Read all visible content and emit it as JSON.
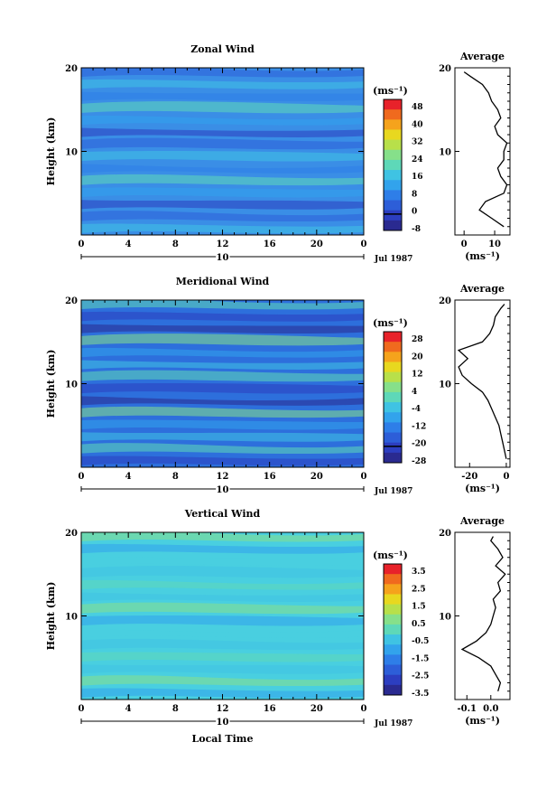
{
  "chart_data": [
    {
      "type": "heatmap",
      "title": "Zonal Wind",
      "ylabel": "Height (km)",
      "xlabel": "",
      "unit": "(ms⁻¹)",
      "date_label": "Jul 1987",
      "day_label": "10",
      "x_ticks": [
        "0",
        "4",
        "8",
        "12",
        "16",
        "20",
        "0"
      ],
      "y_ticks": [
        "20",
        "10"
      ],
      "ylim": [
        0,
        20
      ],
      "xlim": [
        0,
        24
      ],
      "colorbar_ticks": [
        "48",
        "40",
        "32",
        "24",
        "16",
        "8",
        "0",
        "-8"
      ],
      "colorbar_colors": [
        "#e8222a",
        "#f06a1e",
        "#f5a31c",
        "#e8d81f",
        "#b8e04a",
        "#86e08a",
        "#5ed8b8",
        "#3fc3e3",
        "#32a3ec",
        "#2e7ee8",
        "#2d5ed8",
        "#2c3ec0",
        "#2a2a90"
      ],
      "zero_index": 6,
      "fill_color": "#3a8ee6",
      "profile": {
        "title": "Average",
        "xlabel": "(ms⁻¹)",
        "x_ticks": [
          "0",
          "10"
        ],
        "xlim": [
          -3,
          15
        ],
        "y_ticks": [
          "20",
          "10"
        ],
        "z": [
          1,
          2,
          3,
          4,
          5,
          6,
          7,
          8,
          9,
          10,
          11,
          12,
          13,
          14,
          15,
          16,
          17,
          18,
          19,
          19.5
        ],
        "u": [
          13,
          9,
          5,
          7,
          13,
          14,
          12,
          11,
          13,
          13,
          14,
          11,
          10,
          12,
          11,
          9,
          8,
          6,
          2,
          0
        ]
      }
    },
    {
      "type": "heatmap",
      "title": "Meridional Wind",
      "ylabel": "Height (km)",
      "xlabel": "",
      "unit": "(ms⁻¹)",
      "date_label": "Jul 1987",
      "day_label": "10",
      "x_ticks": [
        "0",
        "4",
        "8",
        "12",
        "16",
        "20",
        "0"
      ],
      "y_ticks": [
        "20",
        "10"
      ],
      "ylim": [
        0,
        20
      ],
      "xlim": [
        0,
        24
      ],
      "colorbar_ticks": [
        "28",
        "20",
        "12",
        "4",
        "-4",
        "-12",
        "-20",
        "-28"
      ],
      "colorbar_colors": [
        "#e8222a",
        "#f06a1e",
        "#f5a31c",
        "#e8d81f",
        "#b8e04a",
        "#86e08a",
        "#5ed8b8",
        "#3fc3e3",
        "#32a3ec",
        "#2e7ee8",
        "#2d5ed8",
        "#2c3ec0",
        "#2a2a90"
      ],
      "zero_index": 6,
      "fill_color": "#2d6fdc",
      "profile": {
        "title": "Average",
        "xlabel": "(ms⁻¹)",
        "x_ticks": [
          "-20",
          "0"
        ],
        "xlim": [
          -28,
          2
        ],
        "y_ticks": [
          "20",
          "10"
        ],
        "z": [
          1,
          2,
          3,
          4,
          5,
          6,
          7,
          8,
          9,
          10,
          11,
          12,
          13,
          14,
          15,
          16,
          17,
          18,
          19,
          19.5
        ],
        "u": [
          0,
          -1,
          -2,
          -3,
          -4,
          -6,
          -8,
          -10,
          -13,
          -19,
          -24,
          -26,
          -21,
          -26,
          -13,
          -9,
          -7,
          -6,
          -3,
          -1
        ]
      }
    },
    {
      "type": "heatmap",
      "title": "Vertical Wind",
      "ylabel": "Height (km)",
      "xlabel": "Local Time",
      "unit": "(ms⁻¹)",
      "date_label": "Jul 1987",
      "day_label": "10",
      "x_ticks": [
        "0",
        "4",
        "8",
        "12",
        "16",
        "20",
        "0"
      ],
      "y_ticks": [
        "20",
        "10"
      ],
      "ylim": [
        0,
        20
      ],
      "xlim": [
        0,
        24
      ],
      "colorbar_ticks": [
        "3.5",
        "2.5",
        "1.5",
        "0.5",
        "-0.5",
        "-1.5",
        "-2.5",
        "-3.5"
      ],
      "colorbar_colors": [
        "#e8222a",
        "#f06a1e",
        "#f5a31c",
        "#e8d81f",
        "#b8e04a",
        "#86e08a",
        "#5ed8b8",
        "#3fc3e3",
        "#32a3ec",
        "#2e7ee8",
        "#2d5ed8",
        "#2c3ec0",
        "#2a2a90"
      ],
      "zero_index": -1,
      "fill_color": "#49cfe0",
      "profile": {
        "title": "Average",
        "xlabel": "(ms⁻¹)",
        "x_ticks": [
          "-0.1",
          "0.0"
        ],
        "xlim": [
          -0.15,
          0.08
        ],
        "y_ticks": [
          "20",
          "10"
        ],
        "z": [
          1,
          2,
          3,
          4,
          5,
          6,
          7,
          8,
          9,
          10,
          11,
          12,
          13,
          14,
          15,
          16,
          17,
          18,
          19,
          19.5
        ],
        "u": [
          0.03,
          0.04,
          0.02,
          0.0,
          -0.05,
          -0.12,
          -0.06,
          -0.02,
          0.0,
          0.01,
          0.02,
          0.01,
          0.04,
          0.03,
          0.06,
          0.02,
          0.05,
          0.03,
          0.0,
          0.01
        ]
      }
    }
  ]
}
